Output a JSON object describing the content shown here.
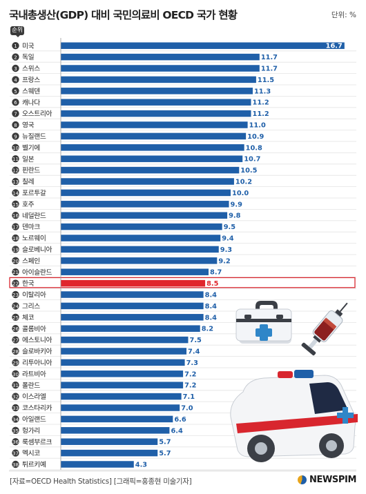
{
  "header": {
    "title": "국내총생산(GDP) 대비 국민의료비 OECD 국가 현황",
    "unit": "단위: %",
    "rank_label": "순위"
  },
  "footer": {
    "source": "[자료=OECD Health Statistics] [그래픽=홍종현 미술기자]",
    "logo": "NEWSPIM"
  },
  "colors": {
    "bar": "#1f5fa8",
    "highlight_bar": "#e0262c",
    "value_text": "#1f5fa8",
    "rank_circle": "#3a3a3a"
  },
  "chart_data": {
    "type": "bar",
    "orientation": "horizontal",
    "highlight": "한국",
    "categories": [
      "미국",
      "독일",
      "스위스",
      "프랑스",
      "스웨덴",
      "캐나다",
      "오스트리아",
      "영국",
      "뉴질랜드",
      "벨기에",
      "일본",
      "핀란드",
      "칠레",
      "포르투갈",
      "호주",
      "네덜란드",
      "덴마크",
      "노르웨이",
      "슬로베니아",
      "스페인",
      "아이슬란드",
      "한국",
      "이탈리아",
      "그리스",
      "체코",
      "콜롬비아",
      "에스토니아",
      "슬로바키아",
      "리투아니아",
      "라트비아",
      "폴란드",
      "이스라엘",
      "코스타리카",
      "아일랜드",
      "헝가리",
      "룩셈부르크",
      "멕시코",
      "튀르키예"
    ],
    "values": [
      16.7,
      11.7,
      11.7,
      11.5,
      11.3,
      11.2,
      11.2,
      11.0,
      10.9,
      10.8,
      10.7,
      10.5,
      10.2,
      10.0,
      9.9,
      9.8,
      9.5,
      9.4,
      9.3,
      9.2,
      8.7,
      8.5,
      8.4,
      8.4,
      8.4,
      8.2,
      7.5,
      7.4,
      7.3,
      7.2,
      7.2,
      7.1,
      7.0,
      6.6,
      6.4,
      5.7,
      5.7,
      4.3
    ],
    "value_labels": [
      "16.7",
      "11.7",
      "11.7",
      "11.5",
      "11.3",
      "11.2",
      "11.2",
      "11.0",
      "10.9",
      "10.8",
      "10.7",
      "10.5",
      "10.2",
      "10.0",
      "9.9",
      "9.8",
      "9.5",
      "9.4",
      "9.3",
      "9.2",
      "8.7",
      "8.5",
      "8.4",
      "8.4",
      "8.4",
      "8.2",
      "7.5",
      "7.4",
      "7.3",
      "7.2",
      "7.2",
      "7.1",
      "7.0",
      "6.6",
      "6.4",
      "5.7",
      "5.7",
      "4.3"
    ]
  }
}
